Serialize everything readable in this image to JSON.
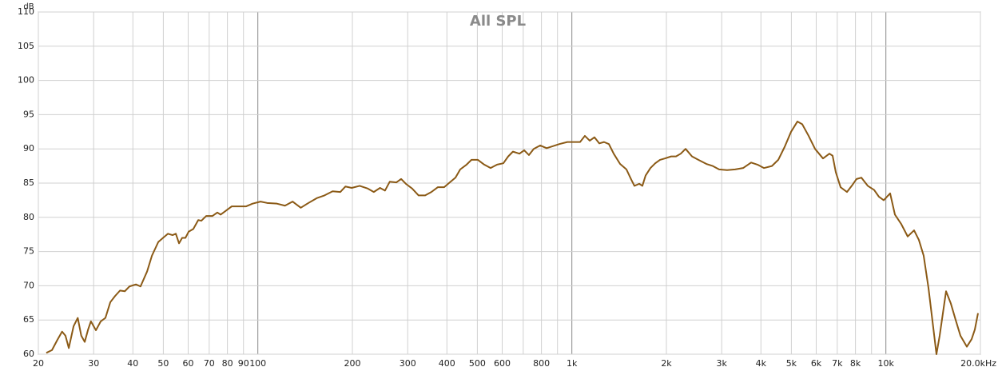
{
  "chart_data": {
    "type": "line",
    "title": "All SPL",
    "y_label": "dB",
    "log_x": true,
    "grid": true,
    "xlim": [
      20,
      20000
    ],
    "ylim": [
      60,
      110
    ],
    "yticks": [
      60,
      65,
      70,
      75,
      80,
      85,
      90,
      95,
      100,
      105,
      110
    ],
    "xticks": [
      20,
      30,
      40,
      50,
      60,
      70,
      80,
      90,
      100,
      200,
      300,
      400,
      500,
      600,
      800,
      {
        "value": 1000,
        "label": "1k"
      },
      {
        "value": 2000,
        "label": "2k"
      },
      {
        "value": 3000,
        "label": "3k"
      },
      {
        "value": 4000,
        "label": "4k"
      },
      {
        "value": 5000,
        "label": "5k"
      },
      {
        "value": 6000,
        "label": "6k"
      },
      {
        "value": 7000,
        "label": "7k"
      },
      {
        "value": 8000,
        "label": "8k"
      },
      {
        "value": 10000,
        "label": "10k"
      },
      {
        "value": 20000,
        "label": "20.0kHz"
      }
    ],
    "xminor": [
      700,
      900,
      9000
    ],
    "x": [
      21.2,
      22.1,
      23.0,
      23.8,
      24.4,
      25.0,
      25.9,
      26.7,
      27.4,
      28.1,
      28.8,
      29.4,
      30.5,
      31.6,
      32.7,
      33.9,
      35.1,
      36.4,
      37.7,
      39.0,
      40.9,
      42.3,
      44.4,
      46.0,
      48.2,
      49.9,
      51.7,
      53.5,
      54.8,
      56.1,
      57.4,
      58.8,
      60.2,
      62.3,
      64.6,
      66.1,
      68.5,
      71.7,
      74.3,
      76.1,
      78.8,
      82.6,
      87.6,
      91.8,
      96.2,
      102,
      107,
      115,
      122,
      129,
      137,
      145,
      154,
      163,
      173,
      183,
      190,
      199,
      211,
      224,
      234,
      245,
      254,
      263,
      276,
      286,
      296,
      310,
      325,
      341,
      357,
      374,
      392,
      406,
      426,
      441,
      462,
      479,
      502,
      526,
      551,
      578,
      605,
      627,
      649,
      681,
      705,
      730,
      756,
      793,
      831,
      870,
      912,
      967,
      1026,
      1062,
      1100,
      1140,
      1180,
      1223,
      1266,
      1312,
      1359,
      1424,
      1492,
      1546,
      1582,
      1639,
      1677,
      1717,
      1779,
      1843,
      1908,
      1977,
      2071,
      2146,
      2222,
      2302,
      2413,
      2528,
      2681,
      2809,
      2944,
      3121,
      3311,
      3510,
      3722,
      3900,
      4088,
      4335,
      4542,
      4761,
      4989,
      5228,
      5415,
      5675,
      5948,
      6306,
      6609,
      6766,
      6925,
      7175,
      7517,
      7785,
      8065,
      8353,
      8754,
      9174,
      9504,
      9843,
      10316,
      10685,
      11196,
      11733,
      12295,
      12736,
      13191,
      13664,
      14152,
      14488,
      14833,
      15546,
      16102,
      16680,
      17275,
      18106,
      18750,
      19197,
      19650
    ],
    "series": [
      {
        "name": "All SPL",
        "color": "#8b5a16",
        "values": [
          60.2,
          60.6,
          62.1,
          63.3,
          62.7,
          60.9,
          64.1,
          65.3,
          62.7,
          61.8,
          63.6,
          64.8,
          63.5,
          64.8,
          65.3,
          67.6,
          68.5,
          69.3,
          69.2,
          69.9,
          70.2,
          69.9,
          72.1,
          74.4,
          76.4,
          77.0,
          77.6,
          77.4,
          77.6,
          76.2,
          77.0,
          77.0,
          77.9,
          78.3,
          79.6,
          79.5,
          80.2,
          80.2,
          80.7,
          80.4,
          80.9,
          81.6,
          81.6,
          81.6,
          82.0,
          82.3,
          82.1,
          82.0,
          81.7,
          82.3,
          81.4,
          82.1,
          82.8,
          83.2,
          83.8,
          83.7,
          84.5,
          84.3,
          84.6,
          84.2,
          83.7,
          84.3,
          83.9,
          85.2,
          85.1,
          85.6,
          84.9,
          84.2,
          83.2,
          83.2,
          83.7,
          84.4,
          84.4,
          85.0,
          85.8,
          87.0,
          87.7,
          88.4,
          88.4,
          87.7,
          87.2,
          87.7,
          87.9,
          88.9,
          89.6,
          89.3,
          89.8,
          89.1,
          90.0,
          90.5,
          90.1,
          90.4,
          90.7,
          91.0,
          91.0,
          91.0,
          91.9,
          91.2,
          91.7,
          90.8,
          91.0,
          90.7,
          89.3,
          87.8,
          87.0,
          85.5,
          84.6,
          84.9,
          84.6,
          86.1,
          87.2,
          87.9,
          88.4,
          88.6,
          88.9,
          88.9,
          89.3,
          90.0,
          88.9,
          88.4,
          87.8,
          87.5,
          87.0,
          86.9,
          87.0,
          87.2,
          88.0,
          87.7,
          87.2,
          87.5,
          88.4,
          90.3,
          92.5,
          94.0,
          93.6,
          91.9,
          90.0,
          88.6,
          89.3,
          89.0,
          86.6,
          84.4,
          83.7,
          84.6,
          85.6,
          85.8,
          84.6,
          84.0,
          83.0,
          82.5,
          83.5,
          80.4,
          79.0,
          77.2,
          78.1,
          76.7,
          74.4,
          69.7,
          63.9,
          60.0,
          62.7,
          69.2,
          67.4,
          65.0,
          62.7,
          61.1,
          62.2,
          63.6,
          66.0
        ]
      }
    ]
  }
}
